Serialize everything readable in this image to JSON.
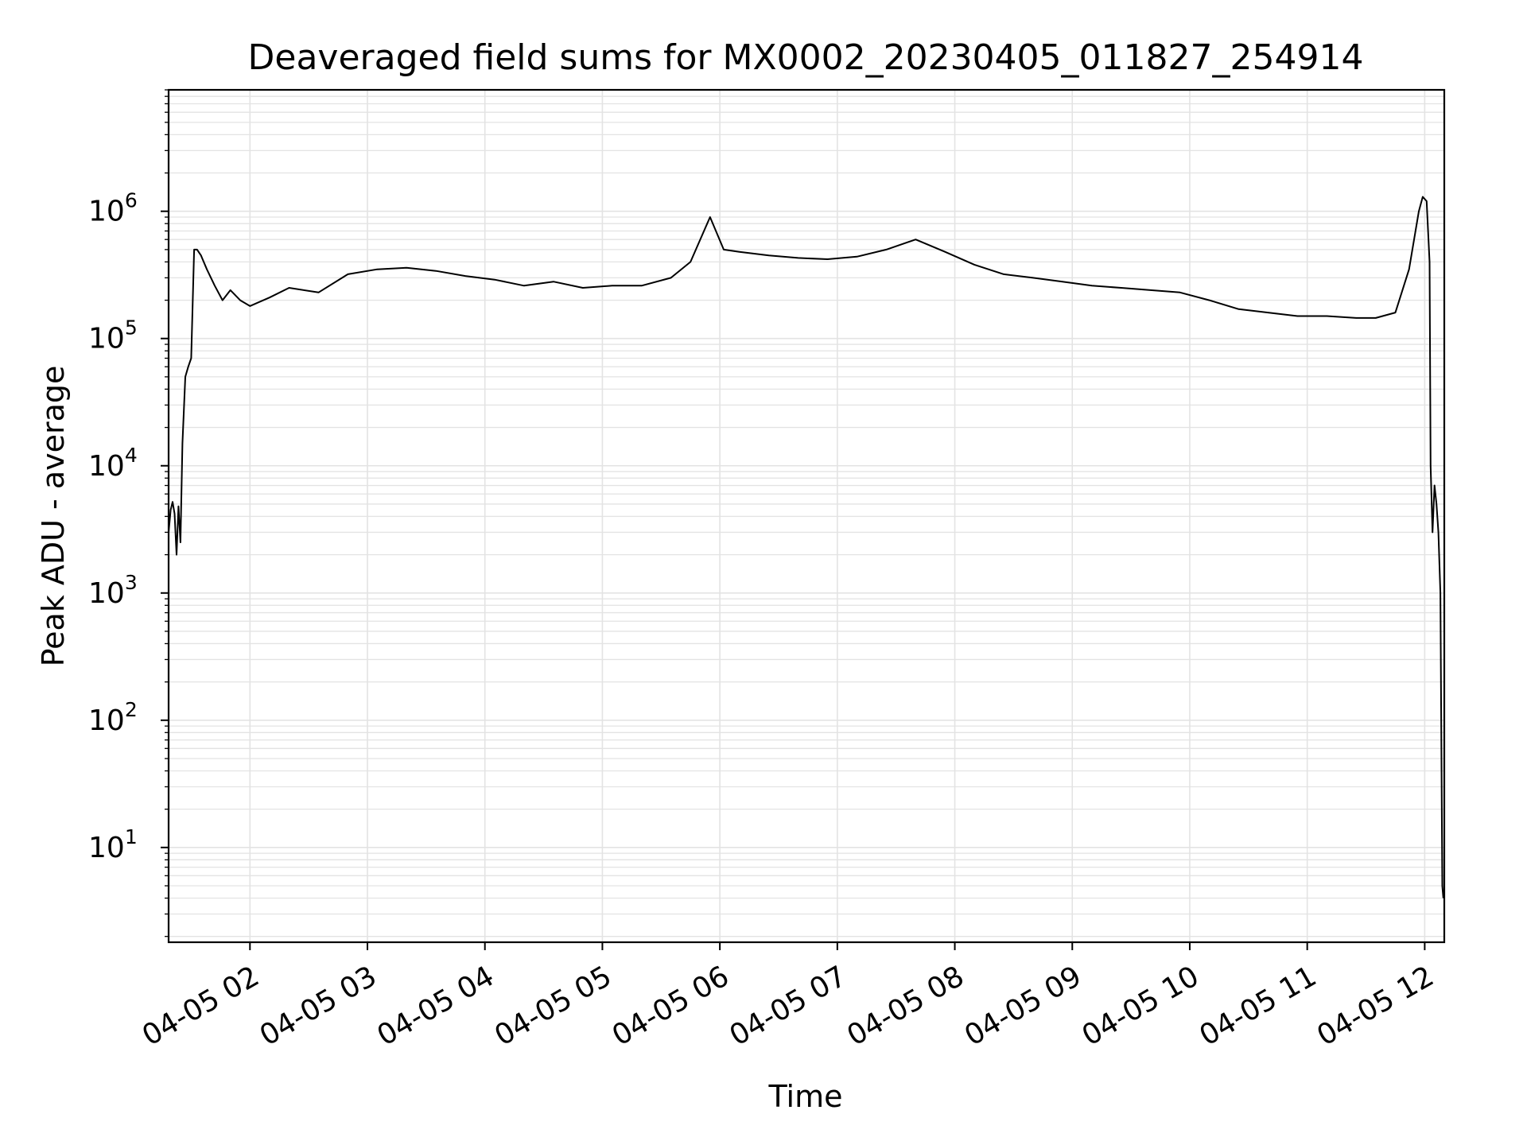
{
  "chart_data": {
    "type": "line",
    "title": "Deaveraged field sums for MX0002_20230405_011827_254914",
    "xlabel": "Time",
    "ylabel": "Peak ADU - average",
    "yscale": "log",
    "ylim": [
      1.8,
      9000000
    ],
    "xlim": [
      "2023-04-05 01:18:27",
      "2023-04-05 12:10:00"
    ],
    "grid": true,
    "legend": "none",
    "line_color": "#000000",
    "grid_color": "#e3e3e3",
    "x_ticks": [
      {
        "value": "2023-04-05 02:00",
        "label": "04-05 02"
      },
      {
        "value": "2023-04-05 03:00",
        "label": "04-05 03"
      },
      {
        "value": "2023-04-05 04:00",
        "label": "04-05 04"
      },
      {
        "value": "2023-04-05 05:00",
        "label": "04-05 05"
      },
      {
        "value": "2023-04-05 06:00",
        "label": "04-05 06"
      },
      {
        "value": "2023-04-05 07:00",
        "label": "04-05 07"
      },
      {
        "value": "2023-04-05 08:00",
        "label": "04-05 08"
      },
      {
        "value": "2023-04-05 09:00",
        "label": "04-05 09"
      },
      {
        "value": "2023-04-05 10:00",
        "label": "04-05 10"
      },
      {
        "value": "2023-04-05 11:00",
        "label": "04-05 11"
      },
      {
        "value": "2023-04-05 12:00",
        "label": "04-05 12"
      }
    ],
    "y_ticks": [
      {
        "value": 10,
        "base": "10",
        "exp": "1"
      },
      {
        "value": 100,
        "base": "10",
        "exp": "2"
      },
      {
        "value": 1000,
        "base": "10",
        "exp": "3"
      },
      {
        "value": 10000,
        "base": "10",
        "exp": "4"
      },
      {
        "value": 100000,
        "base": "10",
        "exp": "5"
      },
      {
        "value": 1000000,
        "base": "10",
        "exp": "6"
      }
    ],
    "series": [
      {
        "x": [
          "2023-04-05 01:18:27",
          "2023-04-05 01:19:30",
          "2023-04-05 01:20:30",
          "2023-04-05 01:21:30",
          "2023-04-05 01:22:30",
          "2023-04-05 01:23:30",
          "2023-04-05 01:24:30",
          "2023-04-05 01:25:30",
          "2023-04-05 01:27:00",
          "2023-04-05 01:28:30",
          "2023-04-05 01:30:00",
          "2023-04-05 01:31:30",
          "2023-04-05 01:33:00",
          "2023-04-05 01:35:00",
          "2023-04-05 01:38:00",
          "2023-04-05 01:42:00",
          "2023-04-05 01:46:00",
          "2023-04-05 01:50:00",
          "2023-04-05 01:55:00",
          "2023-04-05 02:00:00",
          "2023-04-05 02:10:00",
          "2023-04-05 02:20:00",
          "2023-04-05 02:35:00",
          "2023-04-05 02:50:00",
          "2023-04-05 03:05:00",
          "2023-04-05 03:20:00",
          "2023-04-05 03:35:00",
          "2023-04-05 03:50:00",
          "2023-04-05 04:05:00",
          "2023-04-05 04:20:00",
          "2023-04-05 04:35:00",
          "2023-04-05 04:50:00",
          "2023-04-05 05:05:00",
          "2023-04-05 05:20:00",
          "2023-04-05 05:35:00",
          "2023-04-05 05:45:00",
          "2023-04-05 05:55:00",
          "2023-04-05 06:02:00",
          "2023-04-05 06:10:00",
          "2023-04-05 06:25:00",
          "2023-04-05 06:40:00",
          "2023-04-05 06:55:00",
          "2023-04-05 07:10:00",
          "2023-04-05 07:25:00",
          "2023-04-05 07:40:00",
          "2023-04-05 07:55:00",
          "2023-04-05 08:10:00",
          "2023-04-05 08:25:00",
          "2023-04-05 08:40:00",
          "2023-04-05 08:55:00",
          "2023-04-05 09:10:00",
          "2023-04-05 09:25:00",
          "2023-04-05 09:40:00",
          "2023-04-05 09:55:00",
          "2023-04-05 10:10:00",
          "2023-04-05 10:25:00",
          "2023-04-05 10:40:00",
          "2023-04-05 10:55:00",
          "2023-04-05 11:10:00",
          "2023-04-05 11:25:00",
          "2023-04-05 11:35:00",
          "2023-04-05 11:45:00",
          "2023-04-05 11:52:00",
          "2023-04-05 11:57:00",
          "2023-04-05 11:59:00",
          "2023-04-05 12:01:00",
          "2023-04-05 12:02:30",
          "2023-04-05 12:03:00",
          "2023-04-05 12:04:00",
          "2023-04-05 12:05:00",
          "2023-04-05 12:06:00",
          "2023-04-05 12:07:00",
          "2023-04-05 12:08:00",
          "2023-04-05 12:09:00",
          "2023-04-05 12:09:30"
        ],
        "y": [
          3000,
          4500,
          5200,
          4200,
          2000,
          4800,
          2500,
          15000,
          50000,
          60000,
          70000,
          500000,
          500000,
          450000,
          350000,
          260000,
          200000,
          240000,
          200000,
          180000,
          210000,
          250000,
          230000,
          320000,
          350000,
          360000,
          340000,
          310000,
          290000,
          260000,
          280000,
          250000,
          260000,
          260000,
          300000,
          400000,
          900000,
          500000,
          480000,
          450000,
          430000,
          420000,
          440000,
          500000,
          600000,
          480000,
          380000,
          320000,
          300000,
          280000,
          260000,
          250000,
          240000,
          230000,
          200000,
          170000,
          160000,
          150000,
          150000,
          145000,
          145000,
          160000,
          350000,
          1000000,
          1300000,
          1200000,
          400000,
          10000,
          3000,
          7000,
          5000,
          3000,
          1000,
          5,
          4
        ]
      }
    ]
  }
}
